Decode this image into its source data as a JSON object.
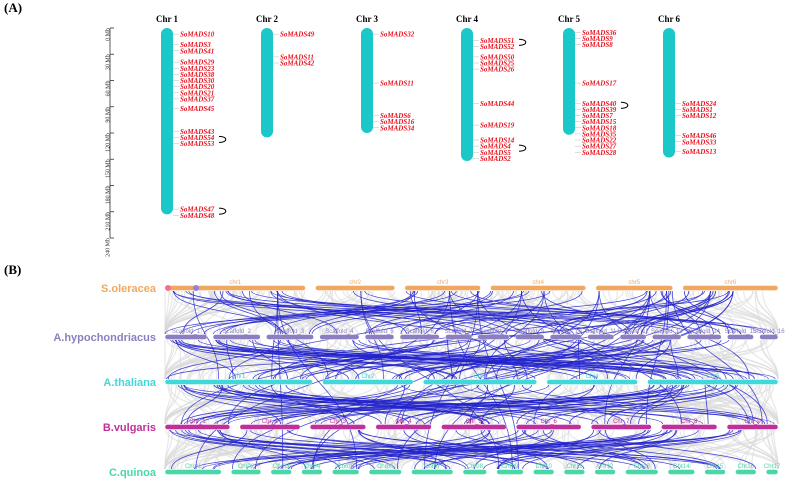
{
  "panels": {
    "a_label": "(A)",
    "b_label": "(B)"
  },
  "ruler": {
    "ticks": [
      "0 Mb",
      "30 Mb",
      "60 Mb",
      "90 Mb",
      "120 Mb",
      "150 Mb",
      "180 Mb",
      "210 Mb",
      "240 Mb"
    ],
    "max_mb": 240
  },
  "colors": {
    "chromosome": "#1ac7c9",
    "gene_text": "#e8121e",
    "link": "#2222cc",
    "background_link": "#d9d9d9",
    "soleracea": "#f0a860",
    "ahypo": "#8c7fbf",
    "athaliana": "#40d8d8",
    "bvulgaris": "#c0309a",
    "cquinoa": "#48d8a8"
  },
  "chromosomes": [
    {
      "name": "Chr 1",
      "length_mb": 213,
      "genes": [
        {
          "label": "SoMADS10",
          "pos_mb": 7
        },
        {
          "label": "SoMADS3",
          "pos_mb": 19
        },
        {
          "label": "SoMADS41",
          "pos_mb": 26
        },
        {
          "label": "SoMADS29",
          "pos_mb": 39
        },
        {
          "label": "SoMADS23",
          "pos_mb": 46
        },
        {
          "label": "SoMADS38",
          "pos_mb": 53
        },
        {
          "label": "SoMADS30",
          "pos_mb": 60
        },
        {
          "label": "SoMADS20",
          "pos_mb": 67
        },
        {
          "label": "SoMADS21",
          "pos_mb": 74
        },
        {
          "label": "SoMADS37",
          "pos_mb": 81
        },
        {
          "label": "SoMADS45",
          "pos_mb": 92
        },
        {
          "label": "SoMADS43",
          "pos_mb": 118
        },
        {
          "label": "SoMADS54",
          "pos_mb": 125
        },
        {
          "label": "SoMADS53",
          "pos_mb": 132
        },
        {
          "label": "SoMADS47",
          "pos_mb": 207
        },
        {
          "label": "SoMADS48",
          "pos_mb": 214
        }
      ]
    },
    {
      "name": "Chr 2",
      "length_mb": 125,
      "genes": [
        {
          "label": "SoMADS49",
          "pos_mb": 7
        },
        {
          "label": "SoMADS11",
          "pos_mb": 33
        },
        {
          "label": "SoMADS42",
          "pos_mb": 40
        }
      ]
    },
    {
      "name": "Chr 3",
      "length_mb": 120,
      "genes": [
        {
          "label": "SoMADS32",
          "pos_mb": 7
        },
        {
          "label": "SoMADS11",
          "pos_mb": 63
        },
        {
          "label": "SoMADS6",
          "pos_mb": 100
        },
        {
          "label": "SoMADS16",
          "pos_mb": 107
        },
        {
          "label": "SoMADS34",
          "pos_mb": 114
        }
      ]
    },
    {
      "name": "Chr 4",
      "length_mb": 152,
      "genes": [
        {
          "label": "SoMADS51",
          "pos_mb": 14
        },
        {
          "label": "SoMADS52",
          "pos_mb": 21
        },
        {
          "label": "SoMADS50",
          "pos_mb": 33
        },
        {
          "label": "SoMADS25",
          "pos_mb": 40
        },
        {
          "label": "SoMADS26",
          "pos_mb": 47
        },
        {
          "label": "SoMADS44",
          "pos_mb": 86
        },
        {
          "label": "SoMADS19",
          "pos_mb": 111
        },
        {
          "label": "SoMADS14",
          "pos_mb": 128
        },
        {
          "label": "SoMADS4",
          "pos_mb": 135
        },
        {
          "label": "SoMADS5",
          "pos_mb": 142
        },
        {
          "label": "SoMADS2",
          "pos_mb": 149
        }
      ]
    },
    {
      "name": "Chr 5",
      "length_mb": 122,
      "genes": [
        {
          "label": "SoMADS36",
          "pos_mb": 5
        },
        {
          "label": "SoMADS9",
          "pos_mb": 12
        },
        {
          "label": "SoMADS8",
          "pos_mb": 19
        },
        {
          "label": "SoMADS17",
          "pos_mb": 63
        },
        {
          "label": "SoMADS40",
          "pos_mb": 86
        },
        {
          "label": "SoMADS39",
          "pos_mb": 93
        },
        {
          "label": "SoMADS7",
          "pos_mb": 100
        },
        {
          "label": "SoMADS15",
          "pos_mb": 107
        },
        {
          "label": "SoMADS18",
          "pos_mb": 114
        },
        {
          "label": "SoMADS35",
          "pos_mb": 121
        },
        {
          "label": "SoMADS22",
          "pos_mb": 128
        },
        {
          "label": "SoMADS27",
          "pos_mb": 135
        },
        {
          "label": "SoMADS28",
          "pos_mb": 142
        }
      ]
    },
    {
      "name": "Chr 6",
      "length_mb": 148,
      "genes": [
        {
          "label": "SoMADS24",
          "pos_mb": 86
        },
        {
          "label": "SoMADS1",
          "pos_mb": 93
        },
        {
          "label": "SoMADS12",
          "pos_mb": 100
        },
        {
          "label": "SoMADS46",
          "pos_mb": 123
        },
        {
          "label": "SoMADS33",
          "pos_mb": 130
        },
        {
          "label": "SoMADS13",
          "pos_mb": 141
        }
      ]
    }
  ],
  "species": [
    {
      "name": "S.oleracea",
      "color_key": "soleracea",
      "segments": [
        "chr1",
        "chr2",
        "chr3",
        "chr4",
        "chr5",
        "chr6"
      ]
    },
    {
      "name": "A.hypochondriacus",
      "color_key": "ahypo",
      "segments": [
        "Scaffold_1",
        "Scaffold_2",
        "Scaffold_3",
        "Scaffold_4",
        "Scaffold_5",
        "Scaffold_6",
        "Scaffold_7",
        "Scaffold_8",
        "Scaffold_9",
        "Scaffold_10",
        "Scaffold_11",
        "Scaffold_12",
        "Scaffold_13",
        "Scaffold_14",
        "Scaffold_15",
        "Scaffold_16"
      ]
    },
    {
      "name": "A.thaliana",
      "color_key": "athaliana",
      "segments": [
        "Chr1",
        "Chr2",
        "Chr3",
        "Chr4",
        "Chr5"
      ]
    },
    {
      "name": "B.vulgaris",
      "color_key": "bvulgaris",
      "segments": [
        "Chr_1",
        "Chr_2",
        "Chr_3",
        "Chr_4",
        "Chr_5",
        "Chr_6",
        "Chr_7",
        "Chr_8",
        "Chr_9"
      ]
    },
    {
      "name": "C.quinoa",
      "color_key": "cquinoa",
      "segments": [
        "Chr01",
        "Chr02",
        "Chr03",
        "Chr04",
        "Chr05",
        "Chr06",
        "Chr07",
        "Chr08",
        "Chr09",
        "Chr10",
        "Chr11",
        "Chr12",
        "Chr13",
        "Chr14",
        "Chr15",
        "Chr16",
        "Chr17"
      ]
    }
  ]
}
